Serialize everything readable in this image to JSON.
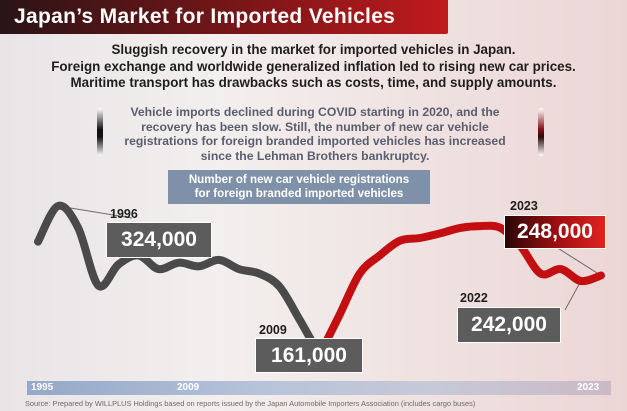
{
  "title": "Japan’s Market for Imported Vehicles",
  "headline": [
    "Sluggish recovery in the market for imported vehicles in Japan.",
    "Foreign exchange and worldwide generalized inflation led to rising new car prices.",
    "Maritime transport has drawbacks such as costs, time, and supply amounts."
  ],
  "subnote": [
    "Vehicle imports declined during COVID starting in 2020, and the",
    "recovery has been slow. Still, the number of new car vehicle",
    "registrations for foreign branded imported vehicles has increased",
    "since the Lehman Brothers bankruptcy."
  ],
  "legend": [
    "Number of new car vehicle registrations",
    "for foreign branded imported vehicles"
  ],
  "annotations": {
    "y1996": "1996",
    "v1996": "324,000",
    "y2009": "2009",
    "v2009": "161,000",
    "y2022": "2022",
    "v2022": "242,000",
    "y2023": "2023",
    "v2023": "248,000"
  },
  "axis": {
    "start": "1995",
    "mid": "2009",
    "end": "2023"
  },
  "source": "Source: Prepared by WILLPLUS Holdings based on reports issued by the Japan Automobile Importers Association (includes cargo buses)",
  "colors": {
    "pre2009": "#4a4a4a",
    "post2009": "#c40f12",
    "axis": "#aebbd1"
  },
  "chart_data": {
    "type": "line",
    "x": [
      1995,
      1996,
      1997,
      1998,
      1999,
      2000,
      2001,
      2002,
      2003,
      2004,
      2005,
      2006,
      2007,
      2008,
      2009,
      2010,
      2011,
      2012,
      2013,
      2014,
      2015,
      2016,
      2017,
      2018,
      2019,
      2020,
      2021,
      2022,
      2023
    ],
    "series": [
      {
        "segment": "1995-2009",
        "x": [
          1995,
          1996,
          1997,
          1998,
          1999,
          2000,
          2001,
          2002,
          2003,
          2004,
          2005,
          2006,
          2007,
          2008,
          2009
        ],
        "values": [
          285,
          324,
          300,
          237,
          260,
          270,
          255,
          262,
          258,
          265,
          255,
          250,
          236,
          200,
          161
        ]
      },
      {
        "segment": "2009-2023",
        "x": [
          2009,
          2010,
          2011,
          2012,
          2013,
          2014,
          2015,
          2016,
          2017,
          2018,
          2019,
          2020,
          2021,
          2022,
          2023
        ],
        "values": [
          161,
          205,
          250,
          270,
          286,
          289,
          294,
          300,
          302,
          300,
          280,
          250,
          255,
          242,
          248
        ]
      }
    ],
    "xlim": [
      1995,
      2023
    ],
    "unit": "thousand vehicles",
    "labeled_points": [
      {
        "x": 1996,
        "y": 324
      },
      {
        "x": 2009,
        "y": 161
      },
      {
        "x": 2022,
        "y": 242
      },
      {
        "x": 2023,
        "y": 248
      }
    ]
  }
}
